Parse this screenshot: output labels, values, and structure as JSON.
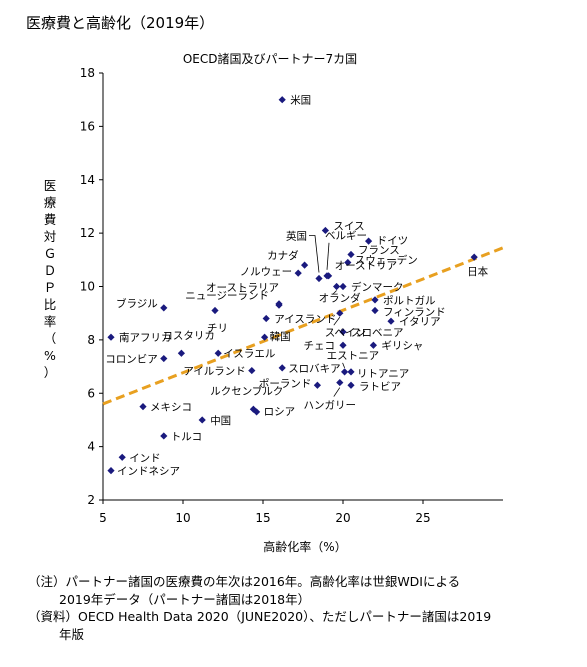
{
  "page": {
    "title": "医療費と高齢化（2019年）"
  },
  "chart_data": {
    "type": "scatter",
    "title": "OECD諸国及びパートナー7カ国",
    "xlabel": "高齢化率（%）",
    "ylabel": "医療費対ＧＤＰ比率（%）",
    "xlim": [
      5,
      30
    ],
    "ylim": [
      2,
      18
    ],
    "xticks": [
      5,
      10,
      15,
      20,
      25
    ],
    "yticks": [
      2,
      4,
      6,
      8,
      10,
      12,
      14,
      16,
      18
    ],
    "grid": false,
    "marker_color": "#1a1a7e",
    "trendline": {
      "color": "#e8a020",
      "style": "dashed",
      "x": [
        5,
        30
      ],
      "y": [
        5.6,
        11.45
      ]
    },
    "points": [
      {
        "label": "米国",
        "x": 16.2,
        "y": 17.0
      },
      {
        "label": "スイス",
        "x": 18.9,
        "y": 12.1
      },
      {
        "label": "ドイツ",
        "x": 21.6,
        "y": 11.7
      },
      {
        "label": "英国",
        "x": 18.5,
        "y": 10.3
      },
      {
        "label": "ベルギー",
        "x": 19.0,
        "y": 10.4
      },
      {
        "label": "フランス",
        "x": 20.5,
        "y": 11.2
      },
      {
        "label": "スウェーデン",
        "x": 20.3,
        "y": 10.9
      },
      {
        "label": "カナダ",
        "x": 17.6,
        "y": 10.8
      },
      {
        "label": "ノルウェー",
        "x": 17.2,
        "y": 10.5
      },
      {
        "label": "日本",
        "x": 28.2,
        "y": 11.1
      },
      {
        "label": "オーストリア",
        "x": 19.1,
        "y": 10.4
      },
      {
        "label": "デンマーク",
        "x": 20.0,
        "y": 10.0
      },
      {
        "label": "オランダ",
        "x": 19.6,
        "y": 10.0
      },
      {
        "label": "オーストラリア",
        "x": 16.0,
        "y": 9.3
      },
      {
        "label": "ニュージーランド",
        "x": 16.0,
        "y": 9.35
      },
      {
        "label": "ポルトガル",
        "x": 22.0,
        "y": 9.5
      },
      {
        "label": "フィンランド",
        "x": 22.0,
        "y": 9.1
      },
      {
        "label": "ブラジル",
        "x": 8.8,
        "y": 9.2
      },
      {
        "label": "チリ",
        "x": 12.0,
        "y": 9.1
      },
      {
        "label": "アイスランド",
        "x": 15.2,
        "y": 8.8
      },
      {
        "label": "スペイン",
        "x": 19.8,
        "y": 9.0
      },
      {
        "label": "イタリア",
        "x": 23.0,
        "y": 8.7
      },
      {
        "label": "南アフリカ",
        "x": 5.5,
        "y": 8.1
      },
      {
        "label": "コスタリカ",
        "x": 9.9,
        "y": 7.5
      },
      {
        "label": "韓国",
        "x": 15.1,
        "y": 8.1
      },
      {
        "label": "スロベニア",
        "x": 20.0,
        "y": 8.3
      },
      {
        "label": "チェコ",
        "x": 20.0,
        "y": 7.8
      },
      {
        "label": "ギリシャ",
        "x": 21.9,
        "y": 7.8
      },
      {
        "label": "コロンビア",
        "x": 8.8,
        "y": 7.3
      },
      {
        "label": "イスラエル",
        "x": 12.2,
        "y": 7.5
      },
      {
        "label": "アイルランド",
        "x": 14.3,
        "y": 6.85
      },
      {
        "label": "スロバキア",
        "x": 16.2,
        "y": 6.95
      },
      {
        "label": "エストニア",
        "x": 20.1,
        "y": 6.8
      },
      {
        "label": "リトアニア",
        "x": 20.5,
        "y": 6.8
      },
      {
        "label": "ポーランド",
        "x": 18.4,
        "y": 6.3
      },
      {
        "label": "ラトビア",
        "x": 20.5,
        "y": 6.3
      },
      {
        "label": "ルクセンブルク",
        "x": 14.4,
        "y": 5.4
      },
      {
        "label": "ロシア",
        "x": 14.6,
        "y": 5.3
      },
      {
        "label": "ハンガリー",
        "x": 19.8,
        "y": 6.4
      },
      {
        "label": "メキシコ",
        "x": 7.5,
        "y": 5.5
      },
      {
        "label": "中国",
        "x": 11.2,
        "y": 5.0
      },
      {
        "label": "トルコ",
        "x": 8.8,
        "y": 4.4
      },
      {
        "label": "インド",
        "x": 6.2,
        "y": 3.6
      },
      {
        "label": "インドネシア",
        "x": 5.5,
        "y": 3.1
      }
    ]
  },
  "notes": {
    "note_line1": "（注）パートナー諸国の医療費の年次は2016年。高齢化率は世銀WDIによる",
    "note_line2": "2019年データ（パートナー諸国は2018年）",
    "source_line1": "（資料）OECD Health Data 2020（JUNE2020）、ただしパートナー諸国は2019",
    "source_line2": "年版"
  }
}
